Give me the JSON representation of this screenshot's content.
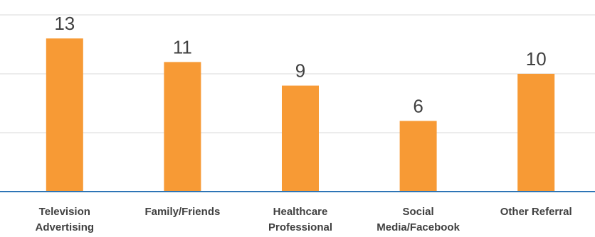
{
  "chart_data": {
    "type": "bar",
    "categories": [
      [
        "Television",
        "Advertising"
      ],
      [
        "Family/Friends"
      ],
      [
        "Healthcare",
        "Professional"
      ],
      [
        "Social",
        "Media/Facebook"
      ],
      [
        "Other Referral"
      ]
    ],
    "values": [
      13,
      11,
      9,
      6,
      10
    ],
    "data_labels": [
      "13",
      "11",
      "9",
      "6",
      "10"
    ],
    "ylim": [
      0,
      15
    ],
    "gridlines": [
      5,
      10,
      15
    ],
    "grid": true,
    "legend": "none",
    "colors": {
      "bar": "#F79A35",
      "gridline": "#D9D9D9",
      "axis": "#2E75B6",
      "text": "#404040"
    }
  }
}
